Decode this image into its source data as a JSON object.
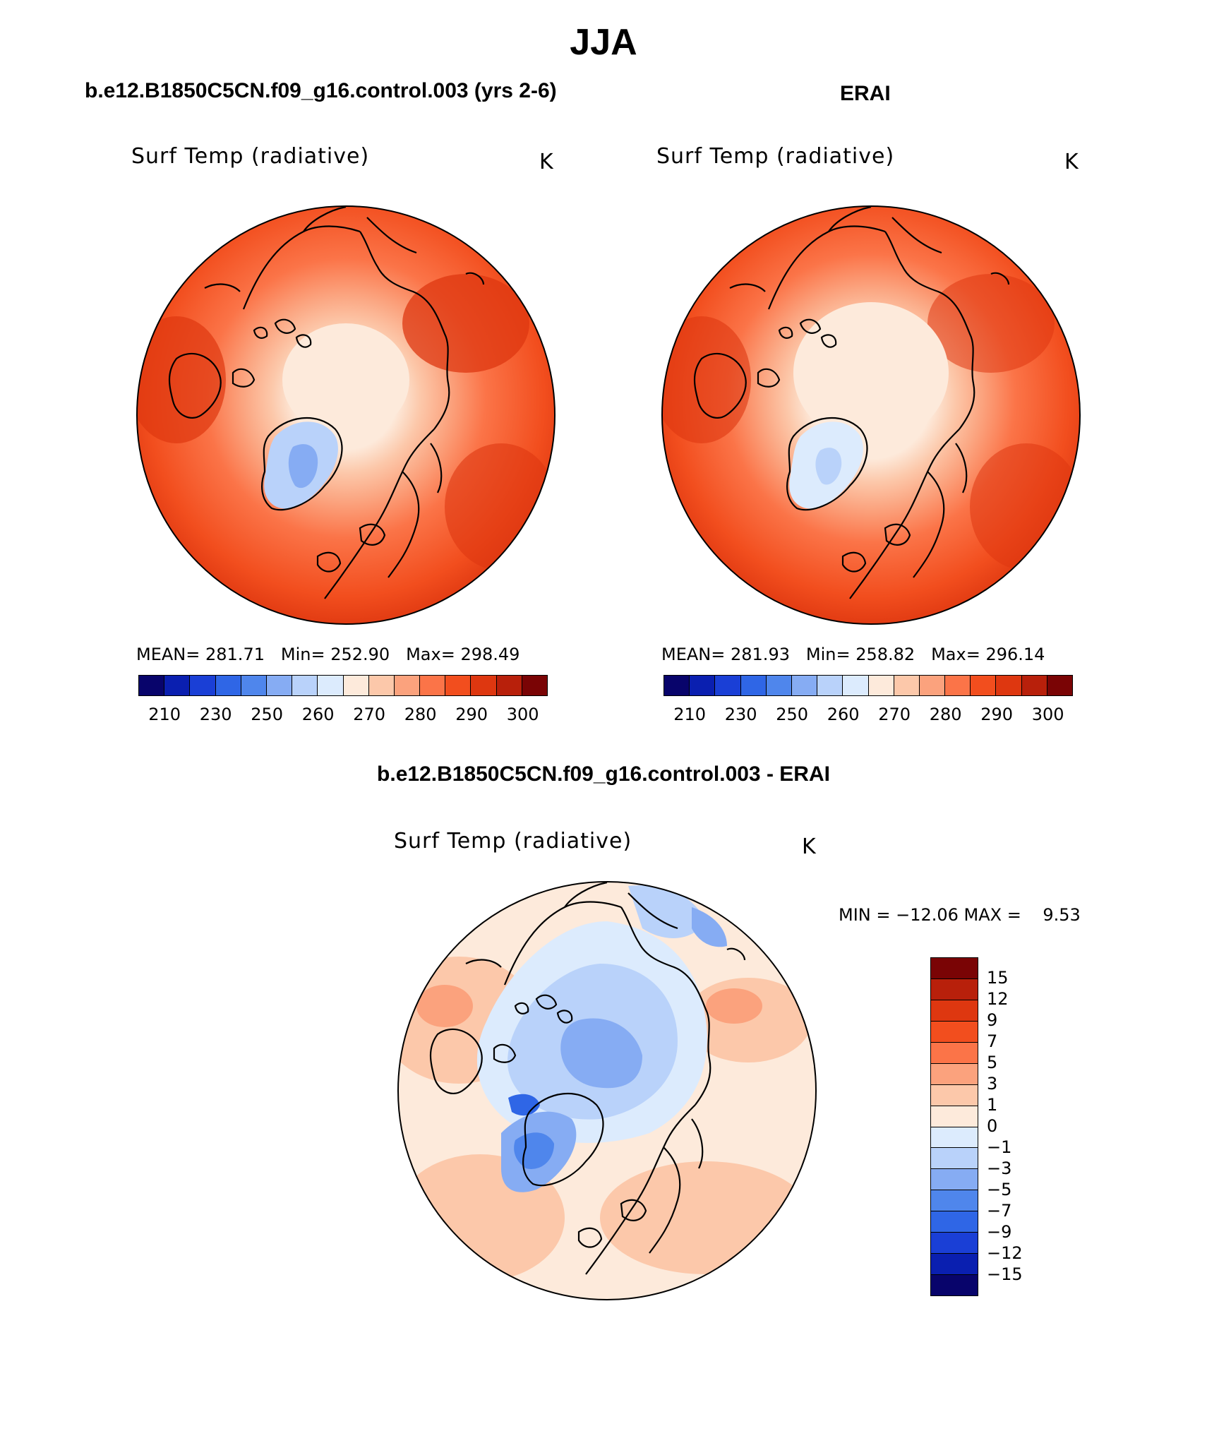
{
  "title": "JJA",
  "panels": [
    {
      "id": "model",
      "subtitle": "b.e12.B1850C5CN.f09_g16.control.003 (yrs 2-6)",
      "variable": "Surf Temp (radiative)",
      "units": "K",
      "stats": {
        "mean_label": "MEAN=",
        "mean": "281.71",
        "min_label": "Min=",
        "min": "252.90",
        "max_label": "Max=",
        "max": "298.49"
      }
    },
    {
      "id": "obs",
      "subtitle": "ERAI",
      "variable": "Surf Temp (radiative)",
      "units": "K",
      "stats": {
        "mean_label": "MEAN=",
        "mean": "281.93",
        "min_label": "Min=",
        "min": "258.82",
        "max_label": "Max=",
        "max": "296.14"
      }
    }
  ],
  "abs_colorbar": {
    "colors": [
      "#08046b",
      "#0a1fb0",
      "#1a3fd6",
      "#2f66e6",
      "#4f86ec",
      "#86acf3",
      "#b9d2fa",
      "#dcebfd",
      "#fdeadb",
      "#fcc8aa",
      "#fba27d",
      "#fb7448",
      "#f24e1e",
      "#de3710",
      "#b8200b",
      "#7a0405"
    ],
    "tick_labels": [
      "210",
      "230",
      "250",
      "260",
      "270",
      "280",
      "290",
      "300"
    ]
  },
  "diff_panel": {
    "subtitle": "b.e12.B1850C5CN.f09_g16.control.003 - ERAI",
    "variable": "Surf Temp (radiative)",
    "units": "K",
    "min_max_label": "MIN = −12.06 MAX =    9.53"
  },
  "diff_colorbar": {
    "colors": [
      "#7a0405",
      "#b8200b",
      "#de3710",
      "#f24e1e",
      "#fb7448",
      "#fba27d",
      "#fcc8aa",
      "#fdeadb",
      "#dcebfd",
      "#b9d2fa",
      "#86acf3",
      "#4f86ec",
      "#2f66e6",
      "#1a3fd6",
      "#0a1fb0",
      "#08046b"
    ],
    "tick_labels": [
      "15",
      "12",
      "9",
      "7",
      "5",
      "3",
      "1",
      "0",
      "−1",
      "−3",
      "−5",
      "−7",
      "−9",
      "−12",
      "−15"
    ]
  }
}
